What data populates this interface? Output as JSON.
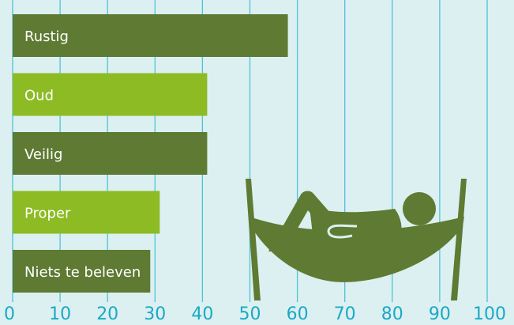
{
  "colors": {
    "background": "#dcf0f1",
    "gridline": "#4fc3d6",
    "tick_label": "#1aa9c5",
    "bar_dark": "#5e7a33",
    "bar_light": "#8dbb24",
    "bar_text": "#ffffff",
    "illustration": "#5e7a33",
    "illustration_detail": "#dcf0f1"
  },
  "illustration": {
    "icon": "person-in-hammock-icon"
  },
  "chart_data": {
    "type": "bar",
    "orientation": "horizontal",
    "categories": [
      "Rustig",
      "Oud",
      "Veilig",
      "Proper",
      "Niets te beleven"
    ],
    "values": [
      58,
      41,
      41,
      31,
      29
    ],
    "bar_colors": [
      "#5e7a33",
      "#8dbb24",
      "#5e7a33",
      "#8dbb24",
      "#5e7a33"
    ],
    "xlim": [
      0,
      100
    ],
    "xticks": [
      "0",
      "10",
      "20",
      "30",
      "40",
      "50",
      "60",
      "70",
      "80",
      "90",
      "100"
    ],
    "grid": true,
    "title": "",
    "xlabel": "",
    "ylabel": ""
  }
}
